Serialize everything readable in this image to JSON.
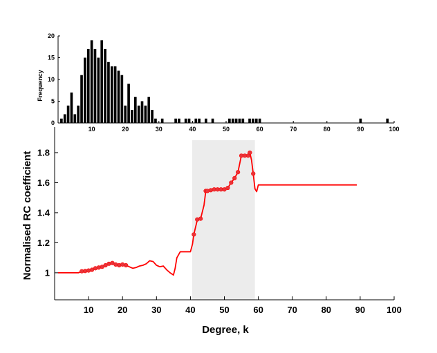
{
  "chart_data": [
    {
      "type": "bar",
      "ylabel": "Frequency",
      "xlim": [
        0,
        100
      ],
      "ylim": [
        0,
        20
      ],
      "x_ticks": [
        10,
        20,
        30,
        40,
        50,
        60,
        70,
        80,
        90,
        100
      ],
      "y_ticks": [
        0,
        5,
        10,
        15,
        20
      ],
      "bar_color": "#000000",
      "bars": [
        {
          "x": 1,
          "y": 1
        },
        {
          "x": 2,
          "y": 2
        },
        {
          "x": 3,
          "y": 4
        },
        {
          "x": 4,
          "y": 7
        },
        {
          "x": 5,
          "y": 2
        },
        {
          "x": 6,
          "y": 4
        },
        {
          "x": 7,
          "y": 11
        },
        {
          "x": 8,
          "y": 15
        },
        {
          "x": 9,
          "y": 17
        },
        {
          "x": 10,
          "y": 19
        },
        {
          "x": 11,
          "y": 17
        },
        {
          "x": 12,
          "y": 15
        },
        {
          "x": 13,
          "y": 19
        },
        {
          "x": 14,
          "y": 17
        },
        {
          "x": 15,
          "y": 14
        },
        {
          "x": 16,
          "y": 13
        },
        {
          "x": 17,
          "y": 13
        },
        {
          "x": 18,
          "y": 12
        },
        {
          "x": 19,
          "y": 11
        },
        {
          "x": 20,
          "y": 4
        },
        {
          "x": 21,
          "y": 9
        },
        {
          "x": 22,
          "y": 3
        },
        {
          "x": 23,
          "y": 6
        },
        {
          "x": 24,
          "y": 4
        },
        {
          "x": 25,
          "y": 5
        },
        {
          "x": 26,
          "y": 4
        },
        {
          "x": 27,
          "y": 6
        },
        {
          "x": 28,
          "y": 3
        },
        {
          "x": 29,
          "y": 1
        },
        {
          "x": 31,
          "y": 1
        },
        {
          "x": 35,
          "y": 1
        },
        {
          "x": 36,
          "y": 1
        },
        {
          "x": 38,
          "y": 1
        },
        {
          "x": 39,
          "y": 1
        },
        {
          "x": 41,
          "y": 1
        },
        {
          "x": 42,
          "y": 1
        },
        {
          "x": 44,
          "y": 1
        },
        {
          "x": 46,
          "y": 1
        },
        {
          "x": 51,
          "y": 1
        },
        {
          "x": 52,
          "y": 1
        },
        {
          "x": 53,
          "y": 1
        },
        {
          "x": 54,
          "y": 1
        },
        {
          "x": 55,
          "y": 1
        },
        {
          "x": 57,
          "y": 1
        },
        {
          "x": 58,
          "y": 1
        },
        {
          "x": 59,
          "y": 1
        },
        {
          "x": 60,
          "y": 1
        },
        {
          "x": 90,
          "y": 1
        },
        {
          "x": 98,
          "y": 1
        }
      ]
    },
    {
      "type": "line",
      "xlabel": "Degree, k",
      "ylabel": "Normalised RC coefficient",
      "xlim": [
        0,
        100
      ],
      "ylim": [
        0.82,
        1.97
      ],
      "x_ticks": [
        10,
        20,
        30,
        40,
        50,
        60,
        70,
        80,
        90,
        100
      ],
      "y_ticks": [
        1,
        1.2,
        1.4,
        1.6,
        1.8
      ],
      "y_tick_labels": [
        "1",
        "1.2",
        "1.4",
        "1.6",
        "1.8"
      ],
      "highlight_region": {
        "x": [
          40.5,
          59
        ],
        "color": "#ececec"
      },
      "line_color": "#ff0000",
      "marker_color": "#e8343a",
      "line": [
        [
          1,
          1.0
        ],
        [
          7,
          1.0
        ],
        [
          8,
          1.01
        ],
        [
          9,
          1.012
        ],
        [
          10,
          1.015
        ],
        [
          11,
          1.02
        ],
        [
          12,
          1.03
        ],
        [
          13,
          1.035
        ],
        [
          14,
          1.04
        ],
        [
          15,
          1.05
        ],
        [
          16,
          1.06
        ],
        [
          17,
          1.065
        ],
        [
          18,
          1.055
        ],
        [
          19,
          1.05
        ],
        [
          20,
          1.055
        ],
        [
          21,
          1.05
        ],
        [
          22,
          1.04
        ],
        [
          23,
          1.03
        ],
        [
          24,
          1.035
        ],
        [
          25,
          1.045
        ],
        [
          26,
          1.05
        ],
        [
          27,
          1.06
        ],
        [
          28,
          1.08
        ],
        [
          29,
          1.075
        ],
        [
          30,
          1.05
        ],
        [
          31,
          1.04
        ],
        [
          32,
          1.045
        ],
        [
          33,
          1.02
        ],
        [
          34,
          1.0
        ],
        [
          35,
          0.985
        ],
        [
          35.5,
          1.03
        ],
        [
          36,
          1.1
        ],
        [
          37,
          1.14
        ],
        [
          40,
          1.14
        ],
        [
          40.6,
          1.19
        ],
        [
          41,
          1.255
        ],
        [
          42,
          1.35
        ],
        [
          43,
          1.36
        ],
        [
          44,
          1.45
        ],
        [
          44.5,
          1.54
        ],
        [
          45,
          1.545
        ],
        [
          46,
          1.55
        ],
        [
          47,
          1.555
        ],
        [
          48,
          1.555
        ],
        [
          49,
          1.555
        ],
        [
          50,
          1.555
        ],
        [
          51,
          1.565
        ],
        [
          52,
          1.6
        ],
        [
          53,
          1.63
        ],
        [
          54,
          1.67
        ],
        [
          55,
          1.78
        ],
        [
          56,
          1.78
        ],
        [
          57,
          1.78
        ],
        [
          57.5,
          1.8
        ],
        [
          58,
          1.75
        ],
        [
          58.5,
          1.66
        ],
        [
          59,
          1.56
        ],
        [
          59.5,
          1.54
        ],
        [
          60,
          1.585
        ],
        [
          89,
          1.585
        ]
      ],
      "markers": [
        [
          8,
          1.01
        ],
        [
          9,
          1.012
        ],
        [
          10,
          1.015
        ],
        [
          11,
          1.02
        ],
        [
          12,
          1.03
        ],
        [
          13,
          1.035
        ],
        [
          14,
          1.04
        ],
        [
          15,
          1.05
        ],
        [
          16,
          1.06
        ],
        [
          17,
          1.065
        ],
        [
          18,
          1.055
        ],
        [
          19,
          1.05
        ],
        [
          20,
          1.055
        ],
        [
          21,
          1.05
        ],
        [
          41,
          1.255
        ],
        [
          42,
          1.355
        ],
        [
          43,
          1.36
        ],
        [
          44.5,
          1.545
        ],
        [
          45,
          1.545
        ],
        [
          46,
          1.55
        ],
        [
          47,
          1.555
        ],
        [
          48,
          1.555
        ],
        [
          49,
          1.555
        ],
        [
          50,
          1.555
        ],
        [
          51,
          1.565
        ],
        [
          52,
          1.6
        ],
        [
          53,
          1.63
        ],
        [
          54,
          1.67
        ],
        [
          55,
          1.78
        ],
        [
          56,
          1.78
        ],
        [
          57,
          1.78
        ],
        [
          57.5,
          1.8
        ],
        [
          58.5,
          1.66
        ]
      ]
    }
  ]
}
